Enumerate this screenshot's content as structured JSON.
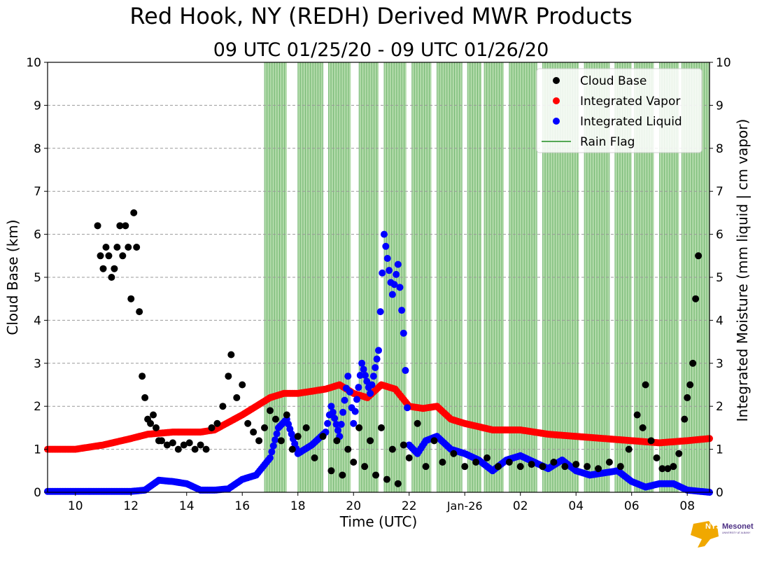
{
  "chart_data": {
    "type": "scatter",
    "title": "Red Hook, NY (REDH) Derived MWR Products",
    "subtitle": "09 UTC 01/25/20 - 09 UTC 01/26/20",
    "xlabel": "Time (UTC)",
    "ylabel_left": "Cloud Base (km)",
    "ylabel_right": "Integrated Moisture (mm liquid | cm vapor)",
    "xlim_hours": [
      9,
      32.8
    ],
    "ylim": [
      0,
      10
    ],
    "grid": true,
    "legend_position": "top-right",
    "x_ticks": [
      {
        "hour": 10,
        "label": "10"
      },
      {
        "hour": 12,
        "label": "12"
      },
      {
        "hour": 14,
        "label": "14"
      },
      {
        "hour": 16,
        "label": "16"
      },
      {
        "hour": 18,
        "label": "18"
      },
      {
        "hour": 20,
        "label": "20"
      },
      {
        "hour": 22,
        "label": "22"
      },
      {
        "hour": 24,
        "label": "Jan-26"
      },
      {
        "hour": 26,
        "label": "02"
      },
      {
        "hour": 28,
        "label": "04"
      },
      {
        "hour": 30,
        "label": "06"
      },
      {
        "hour": 32,
        "label": "08"
      }
    ],
    "y_ticks": [
      "0",
      "1",
      "2",
      "3",
      "4",
      "5",
      "6",
      "7",
      "8",
      "9",
      "10"
    ],
    "legend": [
      {
        "name": "Cloud Base",
        "color": "#000000",
        "marker": "dot"
      },
      {
        "name": "Integrated Vapor",
        "color": "#ff0000",
        "marker": "dot"
      },
      {
        "name": "Integrated Liquid",
        "color": "#0000ff",
        "marker": "dot"
      },
      {
        "name": "Rain Flag",
        "color": "#55a855",
        "marker": "line"
      }
    ],
    "series": [
      {
        "name": "Integrated Vapor",
        "color": "#ff0000",
        "x": [
          9.0,
          10.0,
          11.0,
          12.0,
          12.6,
          13.5,
          14.5,
          15.0,
          16.0,
          17.0,
          17.5,
          18.0,
          18.5,
          19.0,
          19.5,
          20.0,
          20.5,
          21.0,
          21.5,
          22.0,
          22.5,
          23.0,
          23.5,
          24.0,
          25.0,
          26.0,
          27.0,
          28.0,
          29.0,
          30.0,
          31.0,
          32.0,
          32.8
        ],
        "y": [
          1.0,
          1.0,
          1.1,
          1.25,
          1.35,
          1.4,
          1.4,
          1.45,
          1.8,
          2.2,
          2.3,
          2.3,
          2.35,
          2.4,
          2.5,
          2.3,
          2.2,
          2.5,
          2.4,
          2.0,
          1.95,
          2.0,
          1.7,
          1.6,
          1.45,
          1.45,
          1.35,
          1.3,
          1.25,
          1.2,
          1.15,
          1.2,
          1.25
        ]
      },
      {
        "name": "Integrated Liquid",
        "color": "#0000ff",
        "x": [
          9.0,
          10.0,
          11.0,
          12.0,
          12.5,
          13.0,
          13.5,
          14.0,
          14.5,
          15.0,
          15.5,
          16.0,
          16.5,
          17.0,
          17.3,
          17.6,
          18.0,
          18.5,
          19.0,
          19.2,
          19.5,
          19.8,
          20.0,
          20.3,
          20.6,
          20.9,
          21.1,
          21.4,
          21.6,
          21.8,
          22.0,
          22.3,
          22.6,
          23.0,
          23.5,
          24.0,
          24.5,
          25.0,
          25.5,
          26.0,
          26.5,
          27.0,
          27.5,
          28.0,
          28.5,
          29.0,
          29.5,
          30.0,
          30.5,
          31.0,
          31.5,
          32.0,
          32.8
        ],
        "y": [
          0.02,
          0.02,
          0.02,
          0.02,
          0.05,
          0.28,
          0.25,
          0.2,
          0.05,
          0.05,
          0.08,
          0.3,
          0.4,
          0.8,
          1.5,
          1.7,
          0.9,
          1.1,
          1.4,
          2.0,
          1.3,
          2.7,
          1.6,
          3.0,
          2.3,
          3.3,
          6.0,
          4.6,
          5.3,
          3.7,
          1.1,
          0.9,
          1.2,
          1.3,
          1.0,
          0.9,
          0.75,
          0.5,
          0.75,
          0.85,
          0.7,
          0.55,
          0.75,
          0.5,
          0.4,
          0.45,
          0.5,
          0.25,
          0.12,
          0.2,
          0.2,
          0.05,
          0.0
        ]
      },
      {
        "name": "Cloud Base",
        "color": "#000000",
        "x": [
          10.8,
          10.9,
          11.0,
          11.1,
          11.2,
          11.3,
          11.4,
          11.5,
          11.6,
          11.7,
          11.8,
          11.9,
          12.0,
          12.1,
          12.2,
          12.3,
          12.4,
          12.5,
          12.6,
          12.7,
          12.8,
          12.9,
          13.0,
          13.1,
          13.3,
          13.5,
          13.7,
          13.9,
          14.1,
          14.3,
          14.5,
          14.7,
          14.9,
          15.1,
          15.3,
          15.5,
          15.6,
          15.8,
          16.0,
          16.2,
          16.4,
          16.6,
          16.8,
          17.0,
          17.2,
          17.4,
          17.6,
          17.8,
          18.0,
          18.3,
          18.6,
          18.9,
          19.2,
          19.4,
          19.6,
          19.8,
          20.0,
          20.2,
          20.4,
          20.6,
          20.8,
          21.0,
          21.2,
          21.4,
          21.6,
          21.8,
          22.0,
          22.3,
          22.6,
          22.9,
          23.2,
          23.6,
          24.0,
          24.4,
          24.8,
          25.2,
          25.6,
          26.0,
          26.4,
          26.8,
          27.2,
          27.6,
          28.0,
          28.4,
          28.8,
          29.2,
          29.6,
          29.9,
          30.2,
          30.4,
          30.5,
          30.7,
          30.9,
          31.1,
          31.3,
          31.5,
          31.7,
          31.9,
          32.0,
          32.1,
          32.2,
          32.3,
          32.4
        ],
        "y": [
          6.2,
          5.5,
          5.2,
          5.7,
          5.5,
          5.0,
          5.2,
          5.7,
          6.2,
          5.5,
          6.2,
          5.7,
          4.5,
          6.5,
          5.7,
          4.2,
          2.7,
          2.2,
          1.7,
          1.6,
          1.8,
          1.5,
          1.2,
          1.2,
          1.1,
          1.15,
          1.0,
          1.1,
          1.15,
          1.0,
          1.1,
          1.0,
          1.5,
          1.6,
          2.0,
          2.7,
          3.2,
          2.2,
          2.5,
          1.6,
          1.4,
          1.2,
          1.5,
          1.9,
          1.7,
          1.2,
          1.8,
          1.0,
          1.3,
          1.5,
          0.8,
          1.3,
          0.5,
          1.2,
          0.4,
          1.0,
          0.7,
          1.5,
          0.6,
          1.2,
          0.4,
          1.5,
          0.3,
          1.0,
          0.2,
          1.1,
          0.8,
          1.6,
          0.6,
          1.2,
          0.7,
          0.9,
          0.6,
          0.7,
          0.8,
          0.6,
          0.7,
          0.6,
          0.65,
          0.6,
          0.7,
          0.6,
          0.65,
          0.6,
          0.55,
          0.7,
          0.6,
          1.0,
          1.8,
          1.5,
          2.5,
          1.2,
          0.8,
          0.55,
          0.55,
          0.6,
          0.9,
          1.7,
          2.2,
          2.5,
          3.0,
          4.5,
          5.5
        ]
      }
    ],
    "rain_flag_intervals": [
      [
        16.8,
        17.6
      ],
      [
        18.0,
        18.9
      ],
      [
        19.1,
        19.9
      ],
      [
        20.2,
        20.9
      ],
      [
        21.1,
        21.9
      ],
      [
        22.1,
        22.8
      ],
      [
        23.0,
        23.9
      ],
      [
        24.1,
        24.6
      ],
      [
        24.7,
        25.4
      ],
      [
        25.6,
        26.6
      ],
      [
        26.8,
        28.1
      ],
      [
        28.3,
        29.2
      ],
      [
        29.4,
        30.0
      ],
      [
        30.1,
        30.8
      ],
      [
        31.0,
        31.7
      ],
      [
        31.8,
        32.8
      ]
    ]
  },
  "logo": {
    "text": "NYS",
    "text2": "Mesonet",
    "subtext": "UNIVERSITY AT ALBANY",
    "colors": {
      "state": "#f0a800",
      "text": "#4b2e83"
    }
  }
}
